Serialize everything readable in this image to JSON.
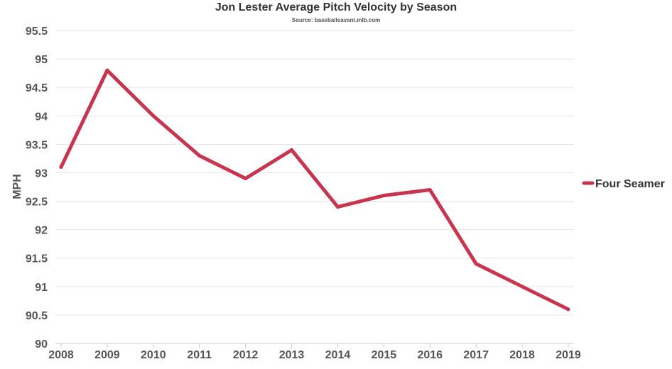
{
  "chart_data": {
    "type": "line",
    "title": "Jon Lester Average Pitch Velocity by Season",
    "subtitle": "Source: baseballsavant.mlb.com",
    "xlabel": "",
    "ylabel": "MPH",
    "x": [
      "2008",
      "2009",
      "2010",
      "2011",
      "2012",
      "2013",
      "2014",
      "2015",
      "2016",
      "2017",
      "2018",
      "2019"
    ],
    "ylim": [
      90,
      95.5
    ],
    "yticks": [
      "90",
      "90.5",
      "91",
      "91.5",
      "92",
      "92.5",
      "93",
      "93.5",
      "94",
      "94.5",
      "95",
      "95.5"
    ],
    "series": [
      {
        "name": "Four Seamer",
        "color": "#c8354f",
        "values": [
          93.1,
          94.8,
          94.0,
          93.3,
          92.9,
          93.4,
          92.4,
          92.6,
          92.7,
          91.4,
          91.0,
          90.6
        ]
      }
    ],
    "grid": true,
    "legend": "right"
  }
}
